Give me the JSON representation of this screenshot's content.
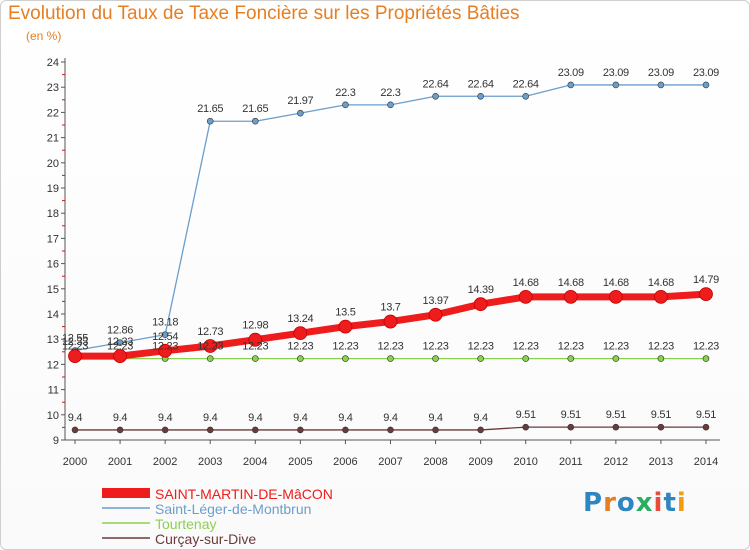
{
  "title": "Evolution du Taux de Taxe Foncière sur les Propriétés Bâties",
  "subtitle": "(en %)",
  "logo": {
    "text": "Proxiti",
    "colors": [
      "#2e86c1",
      "#e67e22",
      "#2e86c1",
      "#27ae60",
      "#e74c3c",
      "#2e86c1",
      "#f39c12"
    ]
  },
  "chart_data": {
    "type": "line",
    "title": "Evolution du Taux de Taxe Foncière sur les Propriétés Bâties",
    "ylabel": "(en %)",
    "xlabel": "",
    "x": [
      "2000",
      "2001",
      "2002",
      "2003",
      "2004",
      "2005",
      "2006",
      "2007",
      "2008",
      "2009",
      "2010",
      "2011",
      "2012",
      "2013",
      "2014"
    ],
    "ylim": [
      9,
      24
    ],
    "yticks": [
      9,
      10,
      11,
      12,
      13,
      14,
      15,
      16,
      17,
      18,
      19,
      20,
      21,
      22,
      23,
      24
    ],
    "grid": false,
    "legend_position": "bottom-left",
    "series": [
      {
        "name": "Saint-Léger-de-Montbrun",
        "color": "#6a9ecb",
        "values": [
          12.55,
          12.86,
          13.18,
          21.65,
          21.65,
          21.97,
          22.3,
          22.3,
          22.64,
          22.64,
          22.64,
          23.09,
          23.09,
          23.09,
          23.09
        ],
        "labels": [
          "12.55",
          "12.86",
          "13.18",
          "21.65",
          "21.65",
          "21.97",
          "22.3",
          "22.3",
          "22.64",
          "22.64",
          "22.64",
          "23.09",
          "23.09",
          "23.09",
          "23.09"
        ]
      },
      {
        "name": "Tourtenay",
        "color": "#8bd14f",
        "values": [
          12.23,
          12.23,
          12.23,
          12.23,
          12.23,
          12.23,
          12.23,
          12.23,
          12.23,
          12.23,
          12.23,
          12.23,
          12.23,
          12.23,
          12.23
        ],
        "labels": [
          "12.23",
          "12.23",
          "12.23",
          "12.23",
          "12.23",
          "12.23",
          "12.23",
          "12.23",
          "12.23",
          "12.23",
          "12.23",
          "12.23",
          "12.23",
          "12.23",
          "12.23"
        ]
      },
      {
        "name": "Curçay-sur-Dive",
        "color": "#6b3a3a",
        "values": [
          9.4,
          9.4,
          9.4,
          9.4,
          9.4,
          9.4,
          9.4,
          9.4,
          9.4,
          9.4,
          9.51,
          9.51,
          9.51,
          9.51,
          9.51
        ],
        "labels": [
          "9.4",
          "9.4",
          "9.4",
          "9.4",
          "9.4",
          "9.4",
          "9.4",
          "9.4",
          "9.4",
          "9.4",
          "9.51",
          "9.51",
          "9.51",
          "9.51",
          "9.51"
        ]
      },
      {
        "name": "SAINT-MARTIN-DE-MâCON",
        "color": "#ee1c1c",
        "values": [
          12.33,
          12.33,
          12.54,
          12.73,
          12.98,
          13.24,
          13.5,
          13.7,
          13.97,
          14.39,
          14.68,
          14.68,
          14.68,
          14.68,
          14.79
        ],
        "labels": [
          "12.33",
          "12.33",
          "12.54",
          "12.73",
          "12.98",
          "13.24",
          "13.5",
          "13.7",
          "13.97",
          "14.39",
          "14.68",
          "14.68",
          "14.68",
          "14.68",
          "14.79"
        ]
      }
    ],
    "legend": [
      "SAINT-MARTIN-DE-MâCON",
      "Saint-Léger-de-Montbrun",
      "Tourtenay",
      "Curçay-sur-Dive"
    ]
  }
}
